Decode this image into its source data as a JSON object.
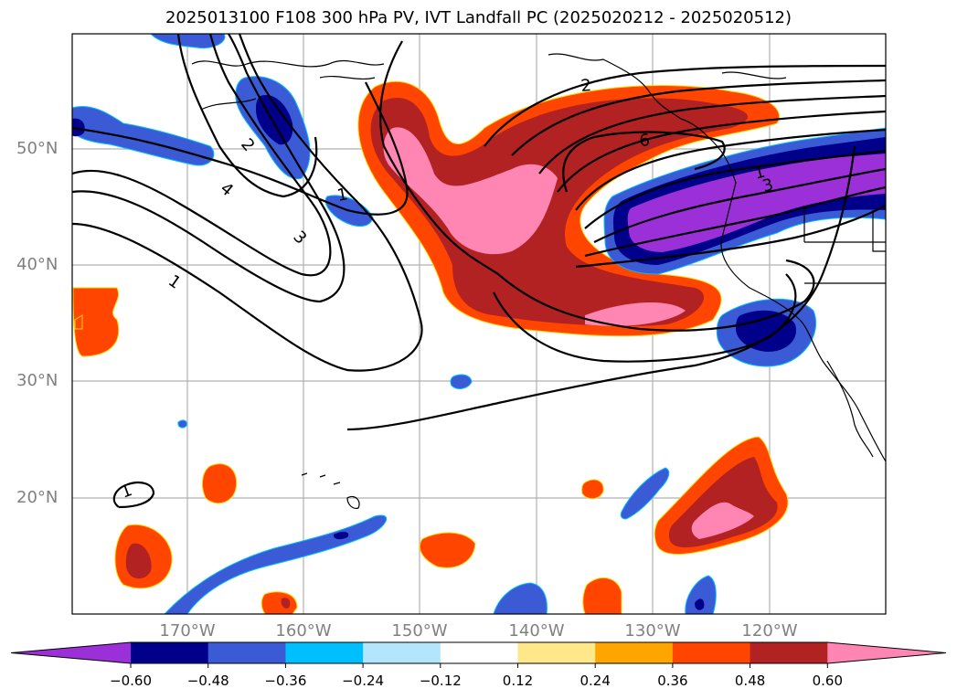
{
  "title": "2025013100 F108 300 hPa PV, IVT Landfall PC (2025020212 - 2025020512)",
  "lat_labels": [
    "50°N",
    "40°N",
    "30°N",
    "20°N"
  ],
  "lon_labels": [
    "170°W",
    "160°W",
    "150°W",
    "140°W",
    "130°W",
    "120°W"
  ],
  "contour_labels": [
    "1",
    "2",
    "3",
    "4",
    "1",
    "2",
    "6",
    "3",
    "1",
    "1"
  ],
  "colorbar": {
    "ticks": [
      "−0.60",
      "−0.48",
      "−0.36",
      "−0.24",
      "−0.12",
      "0.12",
      "0.24",
      "0.36",
      "0.48",
      "0.60"
    ],
    "colors": [
      "#9b30d9",
      "#00008b",
      "#3b5bd6",
      "#00bfff",
      "#b3e5fc",
      "#ffffff",
      "#ffe78a",
      "#ffa500",
      "#ff4500",
      "#b22222",
      "#ff85b3"
    ]
  }
}
